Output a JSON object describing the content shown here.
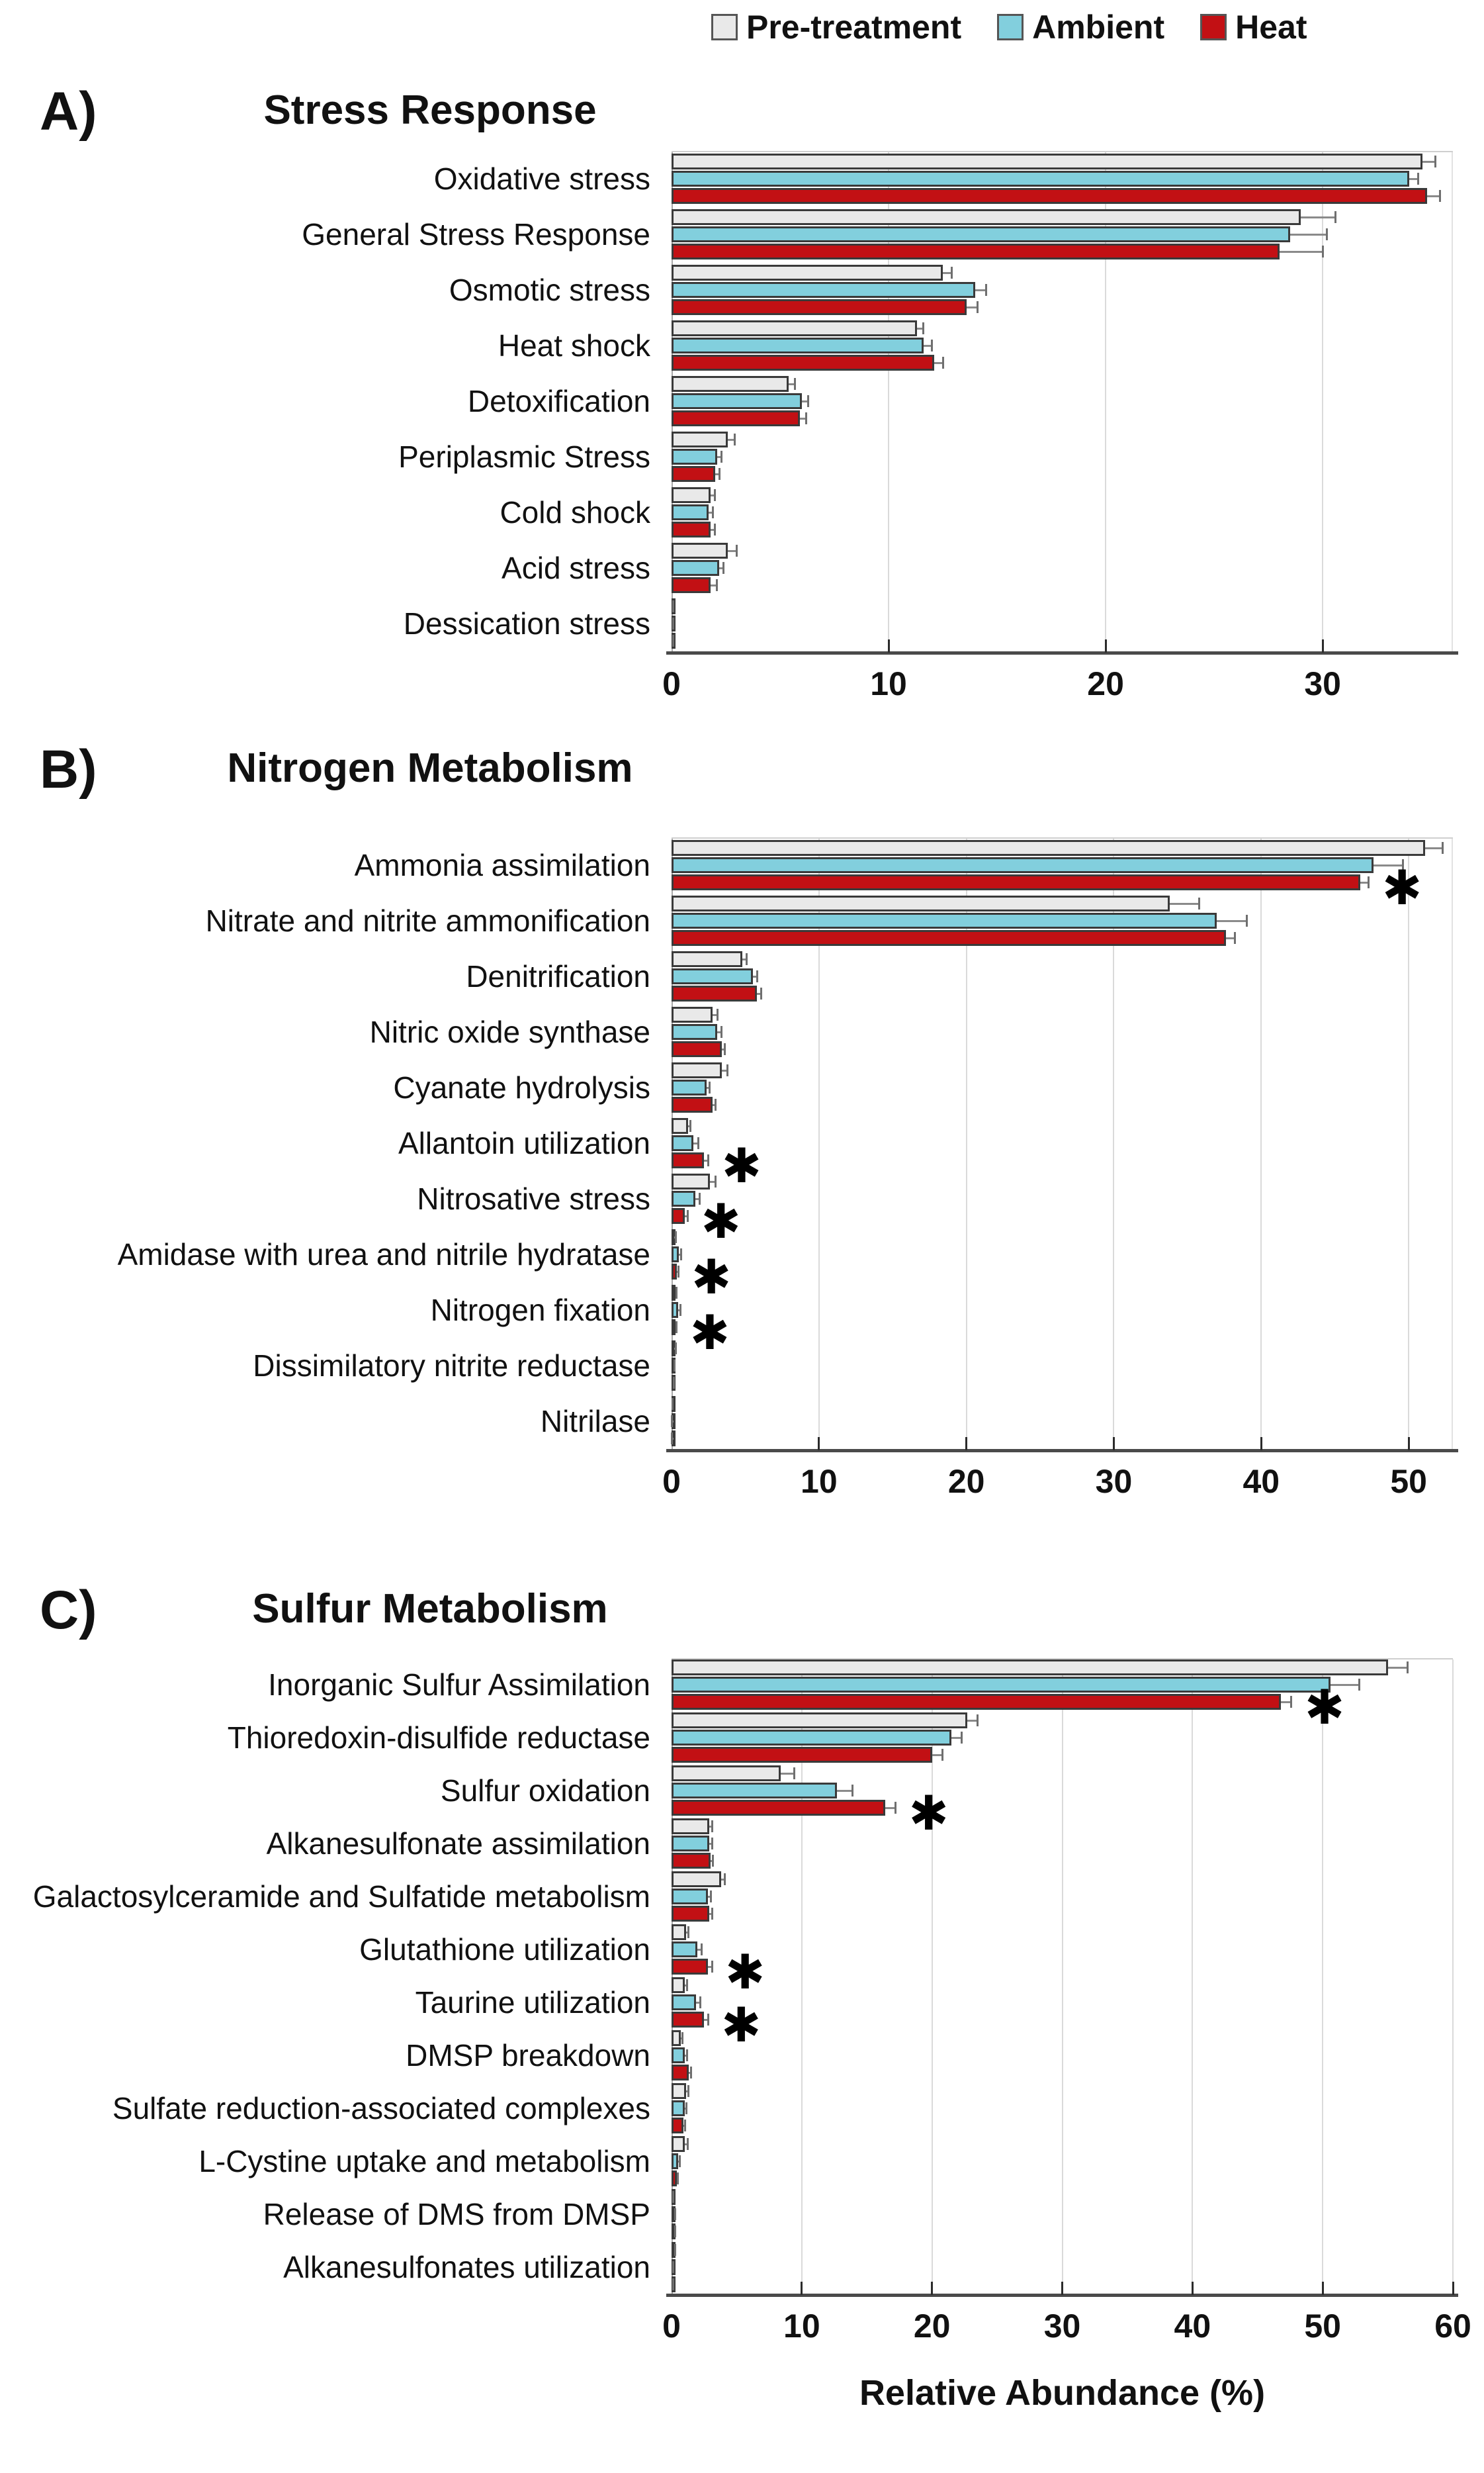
{
  "legend": {
    "items": [
      {
        "label": "Pre-treatment",
        "color": "#E9E9E9"
      },
      {
        "label": "Ambient",
        "color": "#82CFDD"
      },
      {
        "label": "Heat",
        "color": "#C21014"
      }
    ]
  },
  "xlabel": "Relative Abundance (%)",
  "colors": {
    "pretreatment": "#E9E9E9",
    "ambient": "#82CFDD",
    "heat": "#C21014",
    "bar_border": "#3a3a3a",
    "gridline": "#dadada",
    "axis": "#4a4a4a",
    "error_bar": "#8a8a8a"
  },
  "chart_data": [
    {
      "type": "bar",
      "orientation": "horizontal",
      "panel": "A)",
      "title": "Stress Response",
      "series_names": [
        "Pre-treatment",
        "Ambient",
        "Heat"
      ],
      "xlim": [
        0,
        36
      ],
      "ticks": [
        0,
        10,
        20,
        30
      ],
      "grid": true,
      "legend_position": "top",
      "rows": [
        {
          "category": "Oxidative stress",
          "values": [
            34.6,
            34.0,
            34.8
          ],
          "errors": [
            0.6,
            0.4,
            0.6
          ],
          "star": false
        },
        {
          "category": "General Stress Response",
          "values": [
            29.0,
            28.5,
            28.0
          ],
          "errors": [
            1.6,
            1.7,
            2.0
          ],
          "star": false
        },
        {
          "category": "Osmotic stress",
          "values": [
            12.5,
            14.0,
            13.6
          ],
          "errors": [
            0.4,
            0.5,
            0.5
          ],
          "star": false
        },
        {
          "category": "Heat shock",
          "values": [
            11.3,
            11.6,
            12.1
          ],
          "errors": [
            0.3,
            0.4,
            0.4
          ],
          "star": false
        },
        {
          "category": "Detoxification",
          "values": [
            5.4,
            6.0,
            5.9
          ],
          "errors": [
            0.3,
            0.3,
            0.3
          ],
          "star": false
        },
        {
          "category": "Periplasmic Stress",
          "values": [
            2.6,
            2.1,
            2.0
          ],
          "errors": [
            0.3,
            0.2,
            0.2
          ],
          "star": false
        },
        {
          "category": "Cold shock",
          "values": [
            1.8,
            1.7,
            1.8
          ],
          "errors": [
            0.2,
            0.2,
            0.2
          ],
          "star": false
        },
        {
          "category": "Acid stress",
          "values": [
            2.6,
            2.2,
            1.8
          ],
          "errors": [
            0.4,
            0.2,
            0.3
          ],
          "star": false
        },
        {
          "category": "Dessication stress",
          "values": [
            0.05,
            0.05,
            0.05
          ],
          "errors": [
            0.02,
            0.02,
            0.02
          ],
          "star": false
        }
      ]
    },
    {
      "type": "bar",
      "orientation": "horizontal",
      "panel": "B)",
      "title": "Nitrogen Metabolism",
      "series_names": [
        "Pre-treatment",
        "Ambient",
        "Heat"
      ],
      "xlim": [
        0,
        53
      ],
      "ticks": [
        0,
        10,
        20,
        30,
        40,
        50
      ],
      "grid": true,
      "legend_position": "top",
      "rows": [
        {
          "category": "Ammonia assimilation",
          "values": [
            51.1,
            47.6,
            46.7
          ],
          "errors": [
            1.2,
            2.0,
            0.6
          ],
          "star": true
        },
        {
          "category": "Nitrate and nitrite ammonification",
          "values": [
            33.8,
            37.0,
            37.6
          ],
          "errors": [
            2.0,
            2.0,
            0.6
          ],
          "star": false
        },
        {
          "category": "Denitrification",
          "values": [
            4.8,
            5.5,
            5.8
          ],
          "errors": [
            0.3,
            0.3,
            0.3
          ],
          "star": false
        },
        {
          "category": "Nitric oxide synthase",
          "values": [
            2.8,
            3.1,
            3.4
          ],
          "errors": [
            0.3,
            0.3,
            0.2
          ],
          "star": false
        },
        {
          "category": "Cyanate hydrolysis",
          "values": [
            3.4,
            2.4,
            2.8
          ],
          "errors": [
            0.4,
            0.2,
            0.2
          ],
          "star": false
        },
        {
          "category": "Allantoin utilization",
          "values": [
            1.1,
            1.5,
            2.2
          ],
          "errors": [
            0.2,
            0.3,
            0.3
          ],
          "star": true
        },
        {
          "category": "Nitrosative stress",
          "values": [
            2.6,
            1.6,
            0.9
          ],
          "errors": [
            0.4,
            0.3,
            0.2
          ],
          "star": true
        },
        {
          "category": "Amidase with urea and nitrile hydratase",
          "values": [
            0.2,
            0.5,
            0.35
          ],
          "errors": [
            0.1,
            0.15,
            0.1
          ],
          "star": true
        },
        {
          "category": "Nitrogen fixation",
          "values": [
            0.25,
            0.45,
            0.25
          ],
          "errors": [
            0.1,
            0.15,
            0.1
          ],
          "star": true
        },
        {
          "category": "Dissimilatory nitrite reductase",
          "values": [
            0.2,
            0.15,
            0.1
          ],
          "errors": [
            0.1,
            0.05,
            0.05
          ],
          "star": false
        },
        {
          "category": "Nitrilase",
          "values": [
            0.05,
            0.03,
            0.03
          ],
          "errors": [
            0.02,
            0.01,
            0.01
          ],
          "star": false
        }
      ]
    },
    {
      "type": "bar",
      "orientation": "horizontal",
      "panel": "C)",
      "title": "Sulfur Metabolism",
      "series_names": [
        "Pre-treatment",
        "Ambient",
        "Heat"
      ],
      "xlim": [
        0,
        60
      ],
      "ticks": [
        0,
        10,
        20,
        30,
        40,
        50,
        60
      ],
      "grid": true,
      "legend_position": "top",
      "xlabel": "Relative Abundance (%)",
      "rows": [
        {
          "category": "Inorganic Sulfur Assimilation",
          "values": [
            55.0,
            50.6,
            46.8
          ],
          "errors": [
            1.5,
            2.2,
            0.8
          ],
          "star": true
        },
        {
          "category": "Thioredoxin-disulfide reductase",
          "values": [
            22.7,
            21.5,
            20.0
          ],
          "errors": [
            0.8,
            0.8,
            0.8
          ],
          "star": false
        },
        {
          "category": "Sulfur oxidation",
          "values": [
            8.4,
            12.7,
            16.4
          ],
          "errors": [
            1.0,
            1.2,
            0.8
          ],
          "star": true
        },
        {
          "category": "Alkanesulfonate assimilation",
          "values": [
            2.9,
            2.9,
            3.0
          ],
          "errors": [
            0.2,
            0.2,
            0.2
          ],
          "star": false
        },
        {
          "category": "Galactosylceramide and Sulfatide metabolism",
          "values": [
            3.8,
            2.8,
            2.9
          ],
          "errors": [
            0.3,
            0.2,
            0.2
          ],
          "star": false
        },
        {
          "category": "Glutathione utilization",
          "values": [
            1.1,
            2.0,
            2.8
          ],
          "errors": [
            0.2,
            0.3,
            0.3
          ],
          "star": true
        },
        {
          "category": "Taurine utilization",
          "values": [
            1.0,
            1.9,
            2.5
          ],
          "errors": [
            0.2,
            0.3,
            0.3
          ],
          "star": true
        },
        {
          "category": "DMSP breakdown",
          "values": [
            0.7,
            1.0,
            1.3
          ],
          "errors": [
            0.15,
            0.2,
            0.2
          ],
          "star": false
        },
        {
          "category": "Sulfate reduction-associated complexes",
          "values": [
            1.1,
            1.0,
            0.9
          ],
          "errors": [
            0.2,
            0.15,
            0.15
          ],
          "star": false
        },
        {
          "category": "L-Cystine uptake and metabolism",
          "values": [
            1.0,
            0.5,
            0.4
          ],
          "errors": [
            0.25,
            0.15,
            0.1
          ],
          "star": false
        },
        {
          "category": "Release of DMS from DMSP",
          "values": [
            0.1,
            0.2,
            0.2
          ],
          "errors": [
            0.05,
            0.1,
            0.1
          ],
          "star": false
        },
        {
          "category": "Alkanesulfonates utilization",
          "values": [
            0.2,
            0.1,
            0.1
          ],
          "errors": [
            0.1,
            0.05,
            0.05
          ],
          "star": false
        }
      ]
    }
  ]
}
